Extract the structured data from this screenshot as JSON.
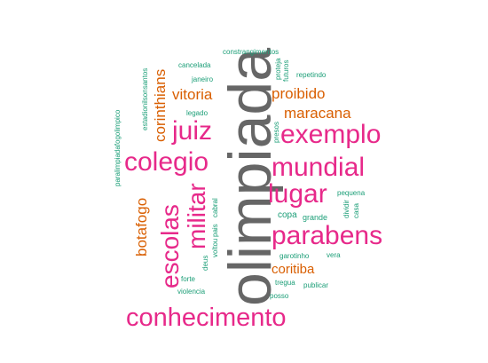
{
  "word_cloud": {
    "colors": {
      "teal": "#1b9e77",
      "orange": "#d95f02",
      "magenta": "#e7298a",
      "gray": "#666666"
    },
    "words": {
      "olimpiada": "olimpiada",
      "conhecimento": "conhecimento",
      "exemplo": "exemplo",
      "mundial": "mundial",
      "lugar": "lugar",
      "parabens": "parabens",
      "colegio": "colegio",
      "juiz": "juiz",
      "militar": "militar",
      "escolas": "escolas",
      "botafogo": "botafogo",
      "corinthians": "corinthians",
      "vitoria": "vitoria",
      "proibido": "proibido",
      "maracana": "maracana",
      "coritiba": "coritiba",
      "constrangimentos": "constrangimentos",
      "cancelada": "cancelada",
      "janeiro": "janeiro",
      "legado": "legado",
      "repetindo": "repetindo",
      "proteja": "proteja",
      "futuros": "futuros",
      "estadionilsonsantos": "estadionilsonsantos",
      "paralimpiadafogolimpico": "paralimpiadafogolimpico",
      "presos": "presos",
      "pequena": "pequena",
      "dividir": "dividir",
      "casa": "casa",
      "copa": "copa",
      "grande": "grande",
      "cabral": "cabral",
      "pais": "pais",
      "voltou": "voltou",
      "deus": "deus",
      "garotinho": "garotinho",
      "vera": "vera",
      "forte": "forte",
      "tregua": "tregua",
      "publicar": "publicar",
      "violencia": "violencia",
      "posso": "posso"
    }
  }
}
